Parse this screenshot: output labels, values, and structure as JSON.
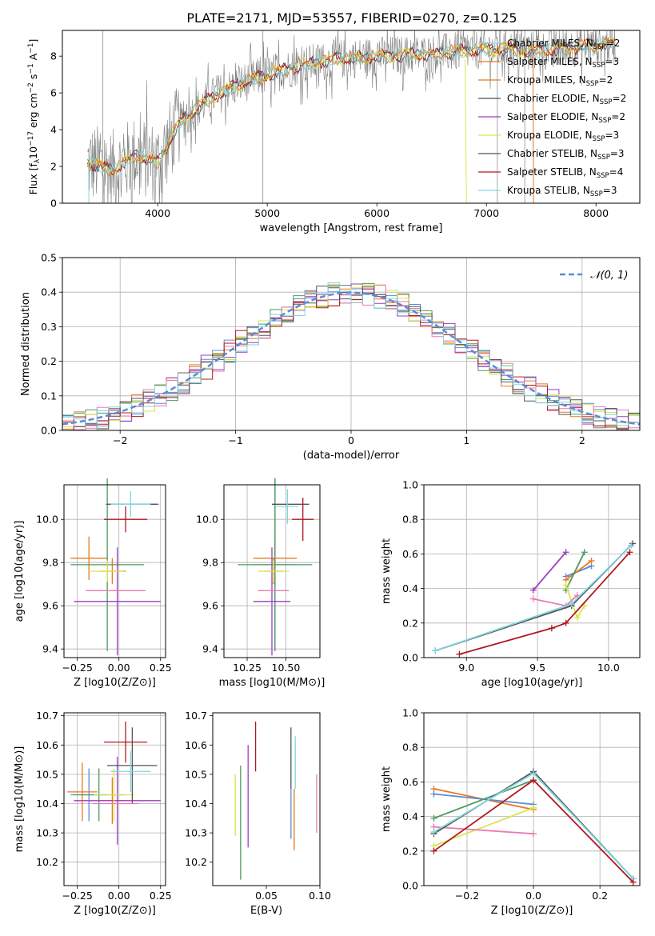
{
  "figure": {
    "title": "PLATE=2171, MJD=53557, FIBERID=0270, z=0.125"
  },
  "colors": {
    "chabrier_miles": "#5b8bd6",
    "salpeter_miles": "#e8791e",
    "kroupa_miles": "#e8791e",
    "chabrier_elodie": "#4c9a5c",
    "salpeter_elodie": "#9b3cc0",
    "kroupa_elodie": "#d8e64c",
    "chabrier_stelib": "#555555",
    "salpeter_stelib": "#b01820",
    "kroupa_stelib": "#7fd6e0",
    "pink": "#e87ab4",
    "fit_gauss": "#5b8bd6"
  },
  "chart_data": [
    {
      "id": "spectrum",
      "type": "line",
      "xlabel": "wavelength [Angstrom, rest frame]",
      "ylabel": "Flux [f_λ 10^-17 erg cm^-2 s^-1 A^-1]",
      "xlim": [
        3130,
        8400
      ],
      "ylim": [
        0,
        9.4
      ],
      "xticks": [
        "4000",
        "5000",
        "6000",
        "7000",
        "8000"
      ],
      "yticks": [
        "0",
        "2",
        "4",
        "6",
        "8"
      ],
      "legend_position": "top-right",
      "series": [
        {
          "name": "Chabrier MILES, N_SSP=2"
        },
        {
          "name": "Salpeter MILES, N_SSP=3"
        },
        {
          "name": "Kroupa MILES, N_SSP=2"
        },
        {
          "name": "Chabrier ELODIE, N_SSP=2"
        },
        {
          "name": "Salpeter ELODIE, N_SSP=2"
        },
        {
          "name": "Kroupa ELODIE, N_SSP=3"
        },
        {
          "name": "Chabrier STELIB, N_SSP=3"
        },
        {
          "name": "Salpeter STELIB, N_SSP=4"
        },
        {
          "name": "Kroupa STELIB, N_SSP=3"
        }
      ],
      "model_trend": {
        "x": [
          3360,
          3600,
          3800,
          4000,
          4200,
          4500,
          4800,
          5000,
          5300,
          5600,
          6000,
          6500,
          7000,
          7500,
          8000,
          8180
        ],
        "y": [
          2.2,
          1.8,
          2.6,
          2.2,
          4.4,
          5.8,
          6.6,
          7.0,
          7.5,
          7.8,
          8.0,
          8.1,
          8.4,
          8.3,
          8.6,
          8.7
        ]
      }
    },
    {
      "id": "residual_hist",
      "type": "area",
      "xlabel": "(data-model)/error",
      "ylabel": "Normed distribution",
      "xlim": [
        -2.5,
        2.5
      ],
      "ylim": [
        0,
        0.5
      ],
      "xticks": [
        "−2",
        "−1",
        "0",
        "1",
        "2"
      ],
      "yticks": [
        "0.0",
        "0.1",
        "0.2",
        "0.3",
        "0.4",
        "0.5"
      ],
      "grid": true,
      "legend_position": "top-right",
      "legend_label": "𝒩(0, 1)",
      "bin_width": 0.1
    },
    {
      "id": "age_vs_z",
      "type": "scatter",
      "xlabel": "Z [log10(Z/Z⊙)]",
      "ylabel": "age [log10(age/yr)]",
      "xlim": [
        -0.33,
        0.28
      ],
      "ylim": [
        9.36,
        10.16
      ],
      "xticks": [
        "−0.25",
        "0.00",
        "0.25"
      ],
      "yticks": [
        "9.4",
        "9.6",
        "9.8",
        "10.0"
      ],
      "grid": true,
      "crosses": [
        {
          "c": "chabrier_miles",
          "x": 0.08,
          "xerr": 0.16,
          "y": 10.07,
          "yerr": 0.0
        },
        {
          "c": "salpeter_miles",
          "x": -0.18,
          "xerr": 0.11,
          "y": 9.82,
          "yerr": 0.1
        },
        {
          "c": "kroupa_miles",
          "x": -0.04,
          "xerr": 0.08,
          "y": 9.76,
          "yerr": 0.06
        },
        {
          "c": "chabrier_elodie",
          "x": -0.07,
          "xerr": 0.22,
          "y": 9.79,
          "yerr": 0.4
        },
        {
          "c": "salpeter_elodie",
          "x": -0.01,
          "xerr": 0.26,
          "y": 9.62,
          "yerr": 0.25
        },
        {
          "c": "kroupa_elodie",
          "x": -0.07,
          "xerr": 0.1,
          "y": 9.76,
          "yerr": 0.05
        },
        {
          "c": "chabrier_stelib",
          "x": 0.08,
          "xerr": 0.15,
          "y": 10.07,
          "yerr": 0.0
        },
        {
          "c": "salpeter_stelib",
          "x": 0.04,
          "xerr": 0.13,
          "y": 10.0,
          "yerr": 0.06
        },
        {
          "c": "kroupa_stelib",
          "x": 0.07,
          "xerr": 0.12,
          "y": 10.07,
          "yerr": 0.06
        },
        {
          "c": "pink",
          "x": -0.02,
          "xerr": 0.18,
          "y": 9.67,
          "yerr": 0.0
        }
      ]
    },
    {
      "id": "age_vs_mass",
      "type": "scatter",
      "xlabel": "mass [log10(M/M⊙)]",
      "ylabel": "",
      "xlim": [
        10.1,
        10.72
      ],
      "ylim": [
        9.36,
        10.16
      ],
      "xticks": [
        "10.25",
        "10.50"
      ],
      "yticks": [
        "9.4",
        "9.6",
        "9.8",
        "10.0"
      ],
      "grid": true,
      "crosses": [
        {
          "c": "chabrier_miles",
          "x": 10.43,
          "xerr": 0.14,
          "y": 9.79,
          "yerr": 0.4
        },
        {
          "c": "salpeter_miles",
          "x": 10.43,
          "xerr": 0.14,
          "y": 9.82,
          "yerr": 0.1
        },
        {
          "c": "kroupa_miles",
          "x": 10.42,
          "xerr": 0.06,
          "y": 9.76,
          "yerr": 0.06
        },
        {
          "c": "chabrier_elodie",
          "x": 10.43,
          "xerr": 0.24,
          "y": 9.79,
          "yerr": 0.4
        },
        {
          "c": "salpeter_elodie",
          "x": 10.41,
          "xerr": 0.12,
          "y": 9.62,
          "yerr": 0.25
        },
        {
          "c": "kroupa_elodie",
          "x": 10.42,
          "xerr": 0.1,
          "y": 9.76,
          "yerr": 0.05
        },
        {
          "c": "chabrier_stelib",
          "x": 10.53,
          "xerr": 0.12,
          "y": 10.07,
          "yerr": 0.0
        },
        {
          "c": "salpeter_stelib",
          "x": 10.61,
          "xerr": 0.07,
          "y": 10.0,
          "yerr": 0.1
        },
        {
          "c": "kroupa_stelib",
          "x": 10.51,
          "xerr": 0.07,
          "y": 10.06,
          "yerr": 0.08
        },
        {
          "c": "pink",
          "x": 10.42,
          "xerr": 0.1,
          "y": 9.67,
          "yerr": 0.0
        }
      ]
    },
    {
      "id": "massweight_vs_age",
      "type": "line",
      "xlabel": "age [log10(age/yr)]",
      "ylabel": "mass weight",
      "xlim": [
        8.7,
        10.22
      ],
      "ylim": [
        0,
        1
      ],
      "xticks": [
        "9.0",
        "9.5",
        "10.0"
      ],
      "yticks": [
        "0.0",
        "0.2",
        "0.4",
        "0.6",
        "0.8",
        "1.0"
      ],
      "grid": true,
      "series": [
        {
          "c": "salpeter_elodie",
          "x": [
            9.47,
            9.7
          ],
          "y": [
            0.39,
            0.61
          ]
        },
        {
          "c": "chabrier_miles",
          "x": [
            9.7,
            9.88
          ],
          "y": [
            0.47,
            0.53
          ]
        },
        {
          "c": "salpeter_miles",
          "x": [
            9.7,
            9.88
          ],
          "y": [
            0.45,
            0.56
          ]
        },
        {
          "c": "chabrier_elodie",
          "x": [
            9.7,
            9.83
          ],
          "y": [
            0.39,
            0.61
          ]
        },
        {
          "c": "kroupa_elodie",
          "x": [
            9.7,
            9.78,
            9.83
          ],
          "y": [
            0.42,
            0.23,
            0.3
          ]
        },
        {
          "c": "pink",
          "x": [
            9.47,
            9.7,
            9.78
          ],
          "y": [
            0.34,
            0.3,
            0.36
          ]
        },
        {
          "c": "chabrier_stelib",
          "x": [
            8.78,
            9.74,
            10.17
          ],
          "y": [
            0.04,
            0.3,
            0.66
          ]
        },
        {
          "c": "kroupa_stelib",
          "x": [
            8.78,
            9.74,
            10.16
          ],
          "y": [
            0.04,
            0.31,
            0.65
          ]
        },
        {
          "c": "salpeter_stelib",
          "x": [
            8.95,
            9.6,
            9.7,
            10.15
          ],
          "y": [
            0.02,
            0.17,
            0.2,
            0.61
          ]
        }
      ]
    },
    {
      "id": "mass_vs_z",
      "type": "scatter",
      "xlabel": "Z [log10(Z/Z⊙)]",
      "ylabel": "mass [log10(M/M⊙)]",
      "xlim": [
        -0.33,
        0.28
      ],
      "ylim": [
        10.12,
        10.71
      ],
      "xticks": [
        "−0.25",
        "0.00",
        "0.25"
      ],
      "yticks": [
        "10.2",
        "10.3",
        "10.4",
        "10.5",
        "10.6",
        "10.7"
      ],
      "grid": true,
      "crosses": [
        {
          "c": "chabrier_miles",
          "x": -0.18,
          "xerr": 0.11,
          "y": 10.43,
          "yerr": 0.09
        },
        {
          "c": "salpeter_miles",
          "x": -0.22,
          "xerr": 0.09,
          "y": 10.44,
          "yerr": 0.1
        },
        {
          "c": "kroupa_miles",
          "x": -0.04,
          "xerr": 0.08,
          "y": 10.41,
          "yerr": 0.08
        },
        {
          "c": "chabrier_elodie",
          "x": -0.12,
          "xerr": 0.15,
          "y": 10.43,
          "yerr": 0.09
        },
        {
          "c": "salpeter_elodie",
          "x": -0.01,
          "xerr": 0.26,
          "y": 10.41,
          "yerr": 0.15
        },
        {
          "c": "kroupa_elodie",
          "x": -0.03,
          "xerr": 0.12,
          "y": 10.43,
          "yerr": 0.09
        },
        {
          "c": "chabrier_stelib",
          "x": 0.08,
          "xerr": 0.15,
          "y": 10.53,
          "yerr": 0.13
        },
        {
          "c": "salpeter_stelib",
          "x": 0.04,
          "xerr": 0.13,
          "y": 10.61,
          "yerr": 0.07
        },
        {
          "c": "kroupa_stelib",
          "x": 0.07,
          "xerr": 0.12,
          "y": 10.51,
          "yerr": 0.07
        },
        {
          "c": "pink",
          "x": -0.02,
          "xerr": 0.14,
          "y": 10.4,
          "yerr": 0.0
        }
      ]
    },
    {
      "id": "mass_vs_ebv",
      "type": "scatter",
      "xlabel": "E(B-V)",
      "ylabel": "",
      "xlim": [
        0.0,
        0.1
      ],
      "ylim": [
        10.12,
        10.71
      ],
      "xticks": [
        "0.05",
        "0.10"
      ],
      "yticks": [
        "10.2",
        "10.3",
        "10.4",
        "10.5",
        "10.6",
        "10.7"
      ],
      "grid": false,
      "bars": [
        {
          "c": "kroupa_elodie",
          "x": 0.021,
          "ylo": 10.29,
          "yhi": 10.5
        },
        {
          "c": "chabrier_elodie",
          "x": 0.026,
          "ylo": 10.14,
          "yhi": 10.53
        },
        {
          "c": "salpeter_elodie",
          "x": 0.033,
          "ylo": 10.25,
          "yhi": 10.6
        },
        {
          "c": "salpeter_stelib",
          "x": 0.04,
          "ylo": 10.51,
          "yhi": 10.68
        },
        {
          "c": "chabrier_stelib",
          "x": 0.073,
          "ylo": 10.45,
          "yhi": 10.66
        },
        {
          "c": "chabrier_miles",
          "x": 0.073,
          "ylo": 10.28,
          "yhi": 10.45
        },
        {
          "c": "salpeter_miles",
          "x": 0.076,
          "ylo": 10.24,
          "yhi": 10.45
        },
        {
          "c": "kroupa_stelib",
          "x": 0.077,
          "ylo": 10.45,
          "yhi": 10.63
        },
        {
          "c": "pink",
          "x": 0.097,
          "ylo": 10.3,
          "yhi": 10.5
        }
      ]
    },
    {
      "id": "massweight_vs_z",
      "type": "line",
      "xlabel": "Z [log10(Z/Z⊙)]",
      "ylabel": "mass weight",
      "xlim": [
        -0.33,
        0.32
      ],
      "ylim": [
        0,
        1
      ],
      "xticks": [
        "−0.2",
        "0.0",
        "0.2"
      ],
      "yticks": [
        "0.0",
        "0.2",
        "0.4",
        "0.6",
        "0.8",
        "1.0"
      ],
      "grid": true,
      "series": [
        {
          "c": "salpeter_miles",
          "x": [
            -0.3,
            0.0
          ],
          "y": [
            0.56,
            0.44
          ]
        },
        {
          "c": "chabrier_miles",
          "x": [
            -0.3,
            0.0
          ],
          "y": [
            0.53,
            0.47
          ]
        },
        {
          "c": "chabrier_elodie",
          "x": [
            -0.3,
            0.0
          ],
          "y": [
            0.39,
            0.61
          ]
        },
        {
          "c": "kroupa_elodie",
          "x": [
            -0.3,
            0.0
          ],
          "y": [
            0.23,
            0.45
          ]
        },
        {
          "c": "pink",
          "x": [
            -0.3,
            0.0
          ],
          "y": [
            0.34,
            0.3
          ]
        },
        {
          "c": "chabrier_stelib",
          "x": [
            -0.3,
            0.0,
            0.3
          ],
          "y": [
            0.3,
            0.66,
            0.04
          ]
        },
        {
          "c": "kroupa_stelib",
          "x": [
            -0.3,
            0.0,
            0.3
          ],
          "y": [
            0.31,
            0.65,
            0.04
          ]
        },
        {
          "c": "salpeter_stelib",
          "x": [
            -0.3,
            0.0,
            0.3
          ],
          "y": [
            0.2,
            0.61,
            0.02
          ]
        }
      ]
    }
  ]
}
